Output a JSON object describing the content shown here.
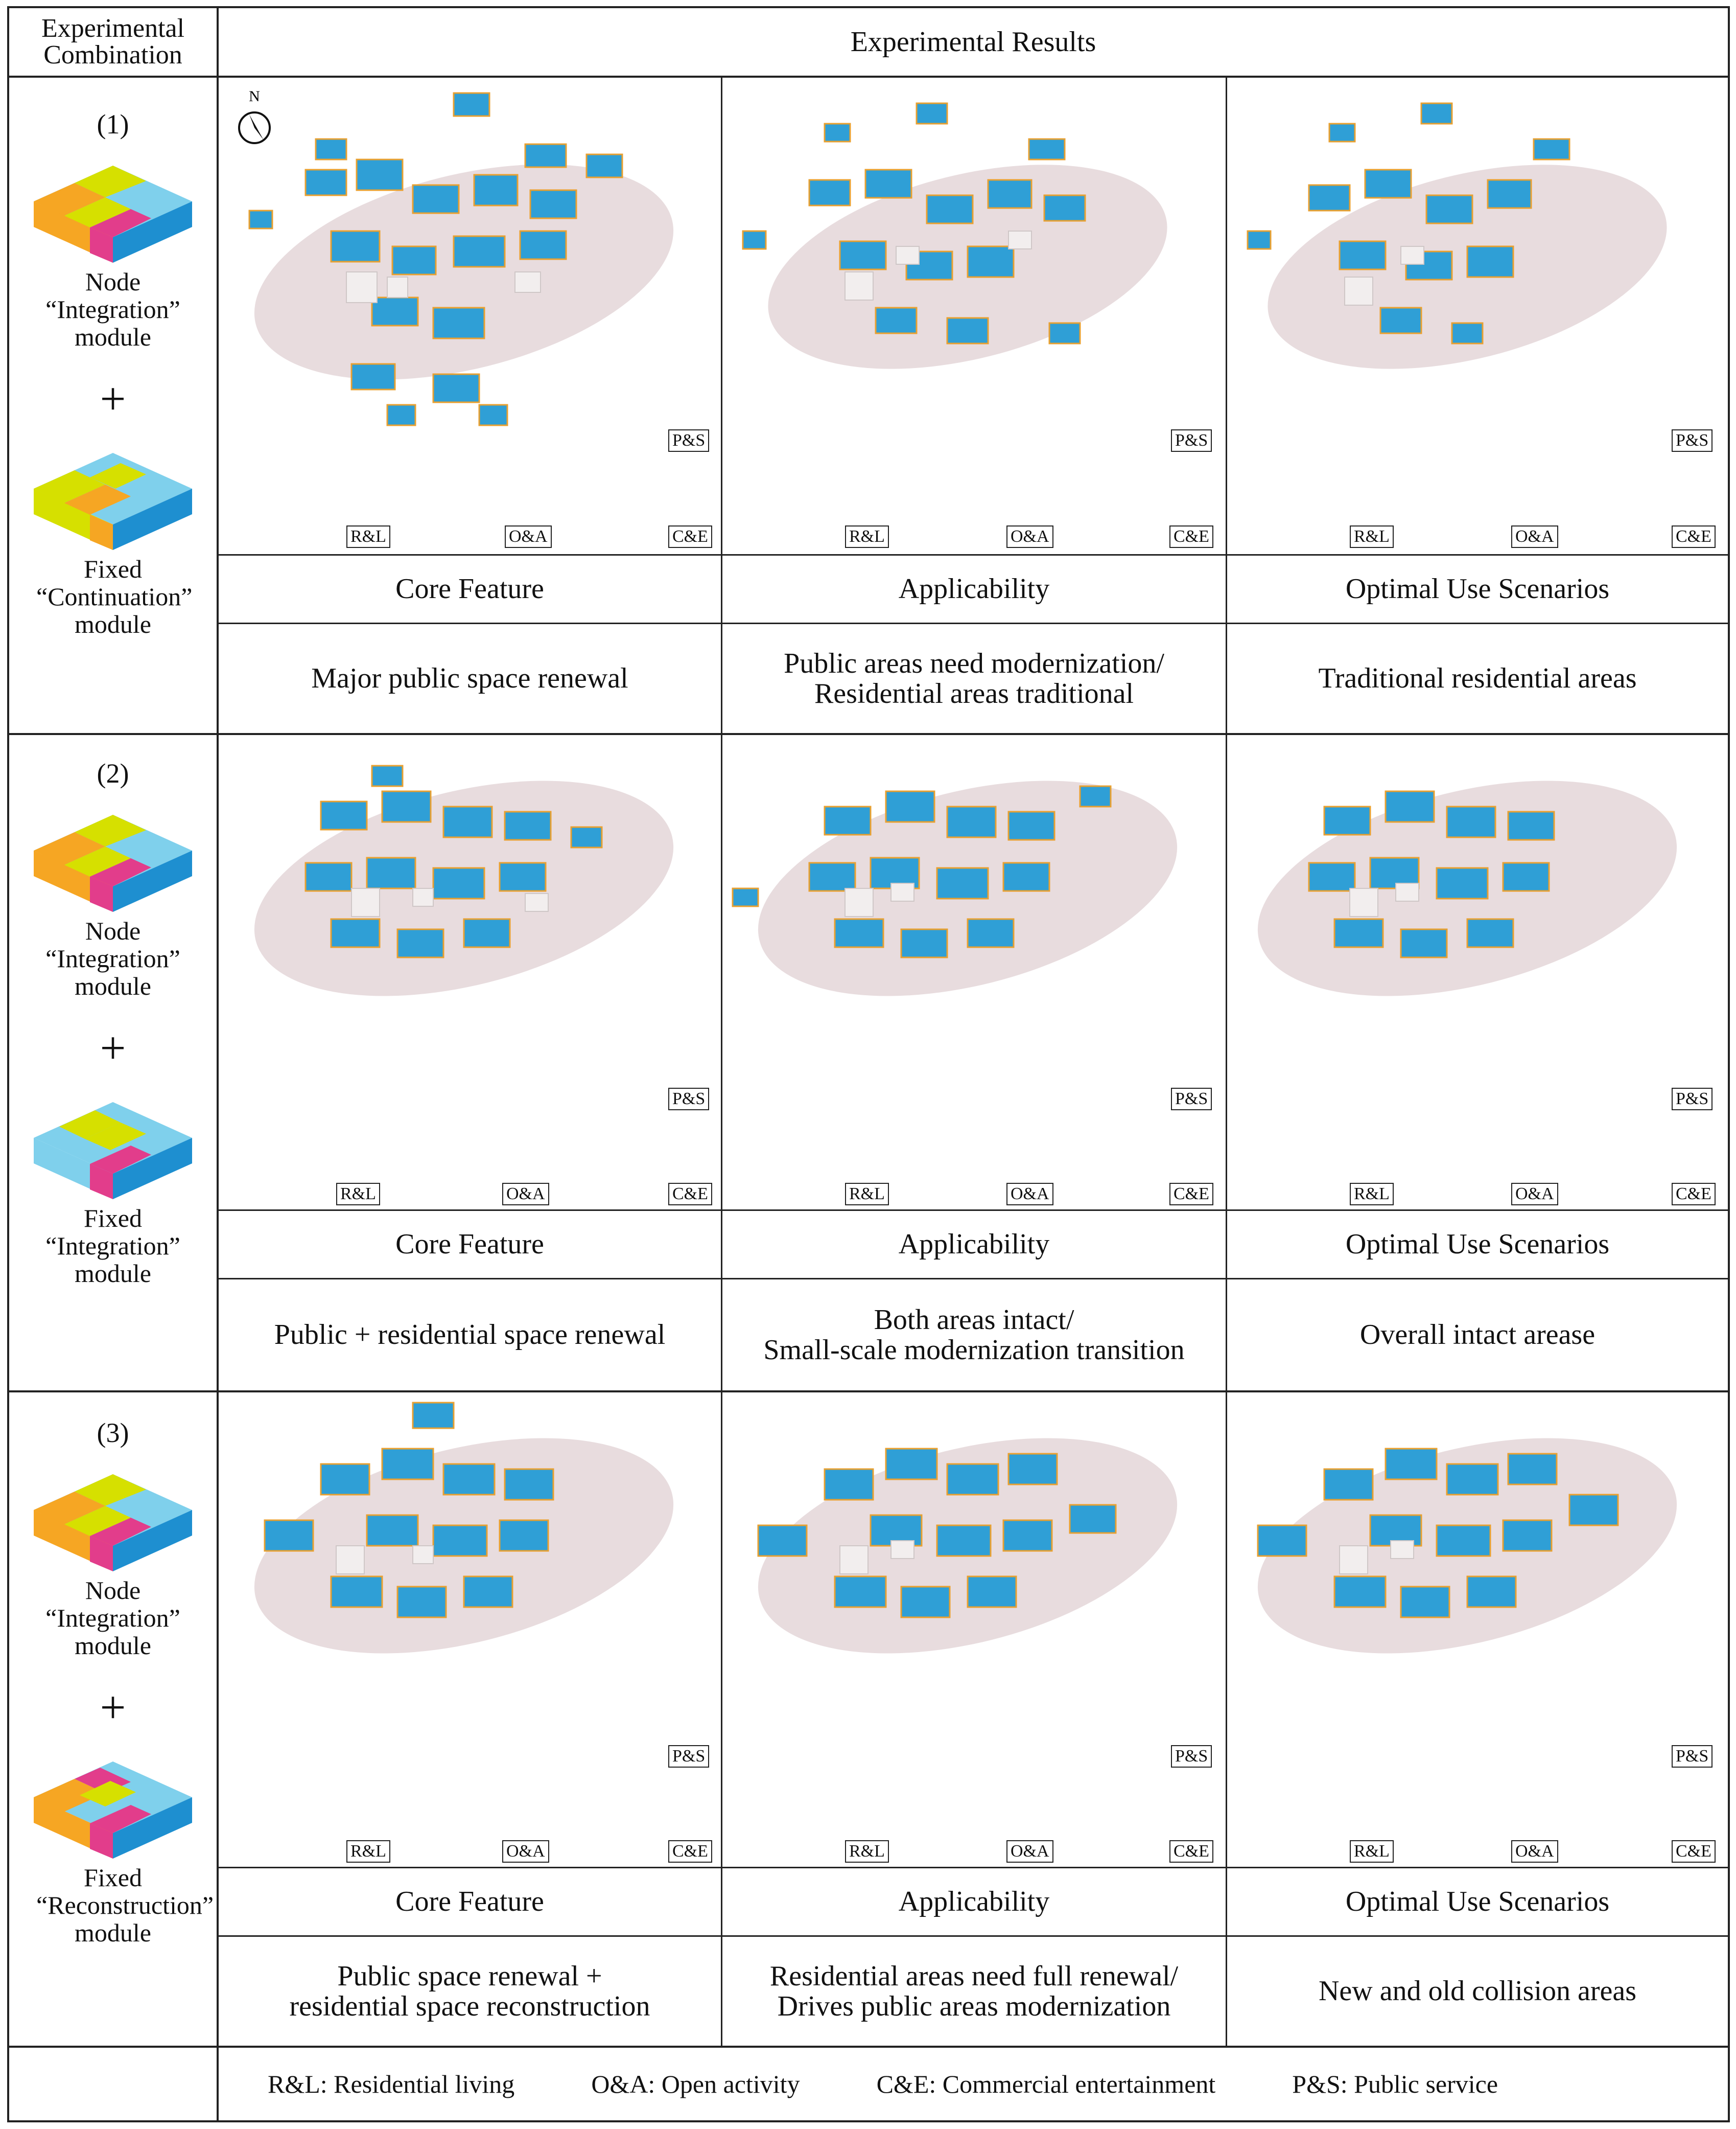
{
  "header": {
    "combination_label": "Experimental Combination",
    "results_label": "Experimental Results"
  },
  "colors": {
    "yellow": "#d6e000",
    "orange": "#f6a623",
    "pink": "#e23d8b",
    "blue": "#7fd0ec",
    "blue_dark": "#1e8fd0",
    "site": "#e8dcde"
  },
  "compass_label": "N",
  "map_tags": {
    "ps": "P&S",
    "rl": "R&L",
    "oa": "O&A",
    "ce": "C&E"
  },
  "rows": [
    {
      "number": "(1)",
      "node_module": "Node “Integration” module",
      "plus": "+",
      "fixed_module": "Fixed “Continuation” module",
      "col_titles": [
        "Core Feature",
        "Applicability",
        "Optimal Use Scenarios"
      ],
      "core_feature": "Major public space renewal",
      "applicability_line1": "Public areas need modernization/",
      "applicability_line2": "Residential areas traditional",
      "scenario": "Traditional residential areas"
    },
    {
      "number": "(2)",
      "node_module": "Node “Integration” module",
      "plus": "+",
      "fixed_module": "Fixed “Integration” module",
      "col_titles": [
        "Core Feature",
        "Applicability",
        "Optimal Use Scenarios"
      ],
      "core_feature": "Public + residential space renewal",
      "applicability_line1": "Both areas intact/",
      "applicability_line2": "Small-scale modernization transition",
      "scenario": "Overall intact arease"
    },
    {
      "number": "(3)",
      "node_module": "Node “Integration” module",
      "plus": "+",
      "fixed_module": "Fixed “Reconstruction” module",
      "col_titles": [
        "Core Feature",
        "Applicability",
        "Optimal Use Scenarios"
      ],
      "core_feature_line1": "Public space renewal +",
      "core_feature_line2": "residential space reconstruction",
      "applicability_line1": "Residential areas need full renewal/",
      "applicability_line2": "Drives public areas modernization",
      "scenario": "New and old collision areas"
    }
  ],
  "legend": {
    "rl": "R&L: Residential living",
    "oa": "O&A: Open activity",
    "ce": "C&E: Commercial entertainment",
    "ps": "P&S: Public service"
  }
}
